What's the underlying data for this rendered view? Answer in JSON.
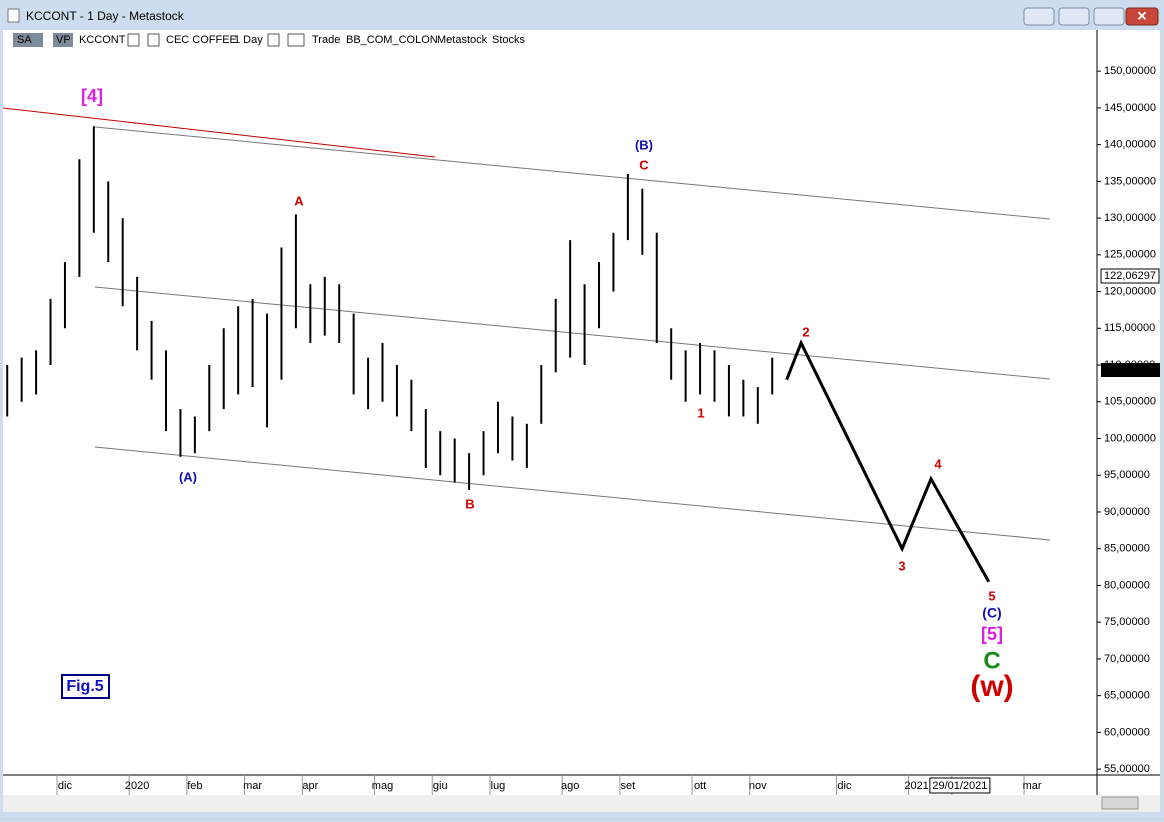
{
  "window": {
    "title": "KCCONT - 1 Day - Metastock"
  },
  "toolbar": {
    "items": [
      "SA",
      "VP",
      "KCCONT",
      "CEC COFFEE",
      "1 Day",
      "Trade",
      "BB_COM_COLON",
      "Metastock",
      "Stocks"
    ]
  },
  "price_boxes": {
    "cursor": "122,06297",
    "last": "109,25000"
  },
  "figure_label": "Fig.5",
  "annotations": [
    "[4]",
    "A",
    "(A)",
    "B",
    "(B)",
    "C",
    "1",
    "2",
    "3",
    "4",
    "5",
    "(C)",
    "[5]",
    "C",
    "(w)"
  ],
  "chart_data": {
    "type": "range_bar",
    "color": "#000000",
    "categories": [
      null,
      null,
      null,
      null,
      "dic",
      null,
      null,
      null,
      null,
      "2020",
      null,
      null,
      null,
      "feb",
      null,
      null,
      null,
      "mar",
      null,
      null,
      null,
      "apr",
      null,
      null,
      null,
      null,
      "mag",
      null,
      null,
      null,
      "giu",
      null,
      null,
      null,
      "lug",
      null,
      null,
      null,
      null,
      "ago",
      null,
      null,
      null,
      "set",
      null,
      null,
      null,
      null,
      "ott",
      null,
      null,
      null,
      "nov",
      null,
      null,
      null,
      null,
      null,
      "dic",
      null,
      null,
      null,
      null,
      "2021",
      null,
      null,
      "29/01/2021",
      null,
      null,
      null,
      null,
      "mar",
      null,
      null,
      null,
      null
    ],
    "highs": [
      110,
      111,
      112,
      119,
      124,
      138,
      142.5,
      135,
      130,
      122,
      116,
      112,
      104,
      103,
      110,
      115,
      118,
      119,
      117,
      126,
      130.5,
      121,
      122,
      121,
      117,
      111,
      113,
      110,
      108,
      104,
      101,
      100,
      98,
      101,
      105,
      103,
      102,
      110,
      119,
      127,
      121,
      124,
      128,
      136,
      134,
      128,
      115,
      112,
      113,
      112,
      110,
      108,
      107,
      111,
      null,
      null,
      null,
      null,
      null,
      null,
      null,
      null,
      null,
      null,
      null,
      null,
      null,
      null,
      null,
      null,
      null,
      null,
      null,
      null,
      null
    ],
    "lows": [
      103,
      105,
      106,
      110,
      115,
      122,
      128,
      124,
      118,
      112,
      108,
      101,
      97.5,
      98,
      101,
      104,
      106,
      107,
      101.5,
      108,
      115,
      113,
      114,
      113,
      106,
      104,
      105,
      103,
      101,
      96,
      95,
      94,
      93,
      95,
      98,
      97,
      96,
      102,
      109,
      111,
      110,
      115,
      120,
      127,
      125,
      113,
      108,
      105,
      106,
      105,
      103,
      103,
      102,
      106,
      null,
      null,
      null,
      null,
      null,
      null,
      null,
      null,
      null,
      null,
      null,
      null,
      null,
      null,
      null,
      null,
      null,
      null,
      null,
      null,
      null
    ],
    "projection": {
      "x": [
        54,
        55,
        62,
        64,
        68
      ],
      "values": [
        108,
        113,
        85,
        94.5,
        80.5
      ],
      "color": "#000000"
    },
    "ylim": [
      54.2,
      155.6
    ],
    "yticks": [
      {
        "value": 55,
        "label": "55,00000"
      },
      {
        "value": 60,
        "label": "60,00000"
      },
      {
        "value": 65,
        "label": "65,00000"
      },
      {
        "value": 70,
        "label": "70,00000"
      },
      {
        "value": 75,
        "label": "75,00000"
      },
      {
        "value": 80,
        "label": "80,00000"
      },
      {
        "value": 85,
        "label": "85,00000"
      },
      {
        "value": 90,
        "label": "90,00000"
      },
      {
        "value": 95,
        "label": "95,00000"
      },
      {
        "value": 100,
        "label": "100,00000"
      },
      {
        "value": 105,
        "label": "105,00000"
      },
      {
        "value": 110,
        "label": "110,00000"
      },
      {
        "value": 115,
        "label": "115,00000"
      },
      {
        "value": 120,
        "label": "120,00000"
      },
      {
        "value": 125,
        "label": "125,00000"
      },
      {
        "value": 130,
        "label": "130,00000"
      },
      {
        "value": 135,
        "label": "135,00000"
      },
      {
        "value": 140,
        "label": "140,00000"
      },
      {
        "value": 145,
        "label": "145,00000"
      },
      {
        "value": 150,
        "label": "150,00000"
      }
    ]
  }
}
